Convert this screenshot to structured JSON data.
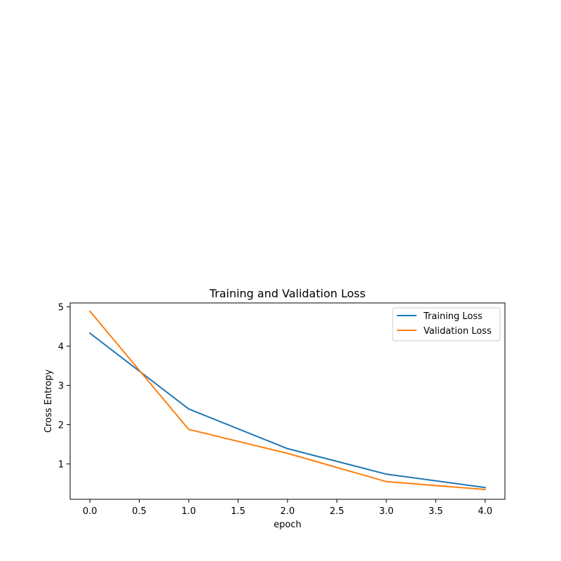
{
  "chart_data": {
    "type": "line",
    "title": "Training and Validation Loss",
    "xlabel": "epoch",
    "ylabel": "Cross Entropy",
    "x": [
      0,
      1,
      2,
      3,
      4
    ],
    "xlim": [
      -0.2,
      4.2
    ],
    "ylim": [
      0.1,
      5.1
    ],
    "xticks": [
      "0.0",
      "0.5",
      "1.0",
      "1.5",
      "2.0",
      "2.5",
      "3.0",
      "3.5",
      "4.0"
    ],
    "yticks": [
      "1",
      "2",
      "3",
      "4",
      "5"
    ],
    "grid": false,
    "legend_position": "top-right",
    "series": [
      {
        "name": "Training Loss",
        "color": "#1f77b4",
        "values": [
          4.33,
          2.4,
          1.39,
          0.74,
          0.4
        ]
      },
      {
        "name": "Validation Loss",
        "color": "#ff7f0e",
        "values": [
          4.89,
          1.88,
          1.27,
          0.55,
          0.35
        ]
      }
    ]
  }
}
